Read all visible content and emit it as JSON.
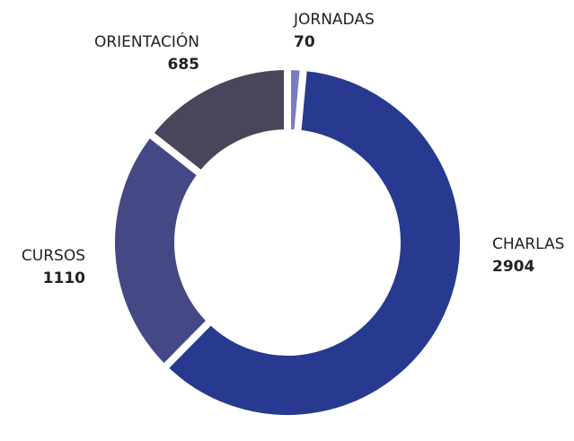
{
  "chart_data": {
    "type": "donut",
    "categories": [
      "JORNADAS",
      "CHARLAS",
      "CURSOS",
      "ORIENTACIÓN"
    ],
    "values": [
      70,
      2904,
      1110,
      685
    ],
    "colors": [
      "#7b7cc0",
      "#283a8f",
      "#444985",
      "#48465a"
    ]
  }
}
